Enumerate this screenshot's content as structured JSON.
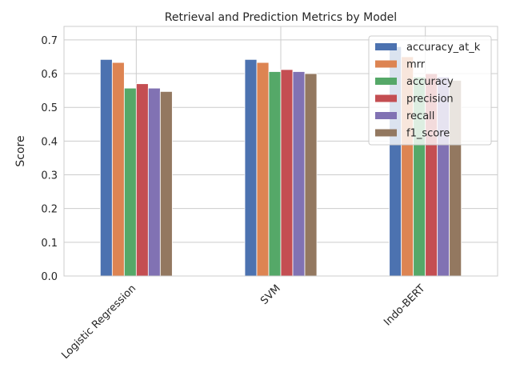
{
  "chart_data": {
    "type": "bar",
    "title": "Retrieval and Prediction Metrics by Model",
    "xlabel": "",
    "ylabel": "Score",
    "ylim": [
      0,
      0.74
    ],
    "yticks": [
      "0.0",
      "0.1",
      "0.2",
      "0.3",
      "0.4",
      "0.5",
      "0.6",
      "0.7"
    ],
    "grid": true,
    "legend_position": "top-right",
    "categories": [
      "Logistic Regression",
      "SVM",
      "Indo-BERT"
    ],
    "series": [
      {
        "name": "accuracy_at_k",
        "color": "#4c72b0",
        "values": [
          0.642,
          0.642,
          0.68
        ]
      },
      {
        "name": "mrr",
        "color": "#dd8452",
        "values": [
          0.633,
          0.633,
          0.65
        ]
      },
      {
        "name": "accuracy",
        "color": "#55a868",
        "values": [
          0.557,
          0.606,
          0.59
        ]
      },
      {
        "name": "precision",
        "color": "#c44e52",
        "values": [
          0.57,
          0.612,
          0.6
        ]
      },
      {
        "name": "recall",
        "color": "#8172b3",
        "values": [
          0.557,
          0.606,
          0.59
        ]
      },
      {
        "name": "f1_score",
        "color": "#937860",
        "values": [
          0.547,
          0.6,
          0.58
        ]
      }
    ]
  }
}
